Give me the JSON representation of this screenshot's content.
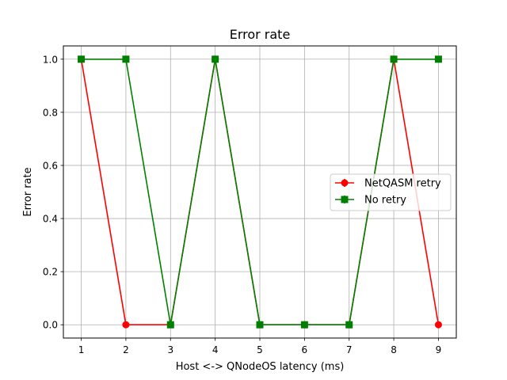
{
  "chart_data": {
    "type": "line",
    "title": "Error rate",
    "xlabel": "Host <-> QNodeOS latency (ms)",
    "ylabel": "Error rate",
    "x": [
      1,
      2,
      3,
      4,
      5,
      6,
      7,
      8,
      9
    ],
    "xlim": [
      0.6,
      9.4
    ],
    "ylim": [
      -0.05,
      1.05
    ],
    "xticks": [
      "1",
      "2",
      "3",
      "4",
      "5",
      "6",
      "7",
      "8",
      "9"
    ],
    "yticks": [
      "0.0",
      "0.2",
      "0.4",
      "0.6",
      "0.8",
      "1.0"
    ],
    "grid": true,
    "legend_position": "center-right",
    "series": [
      {
        "name": "NetQASM retry",
        "values": [
          1.0,
          0.0,
          0.0,
          1.0,
          0.0,
          0.0,
          0.0,
          1.0,
          0.0
        ],
        "color": "#ff0000",
        "marker": "circle"
      },
      {
        "name": "No retry",
        "values": [
          1.0,
          1.0,
          0.0,
          1.0,
          0.0,
          0.0,
          0.0,
          1.0,
          1.0
        ],
        "color": "#008000",
        "marker": "square"
      }
    ]
  }
}
